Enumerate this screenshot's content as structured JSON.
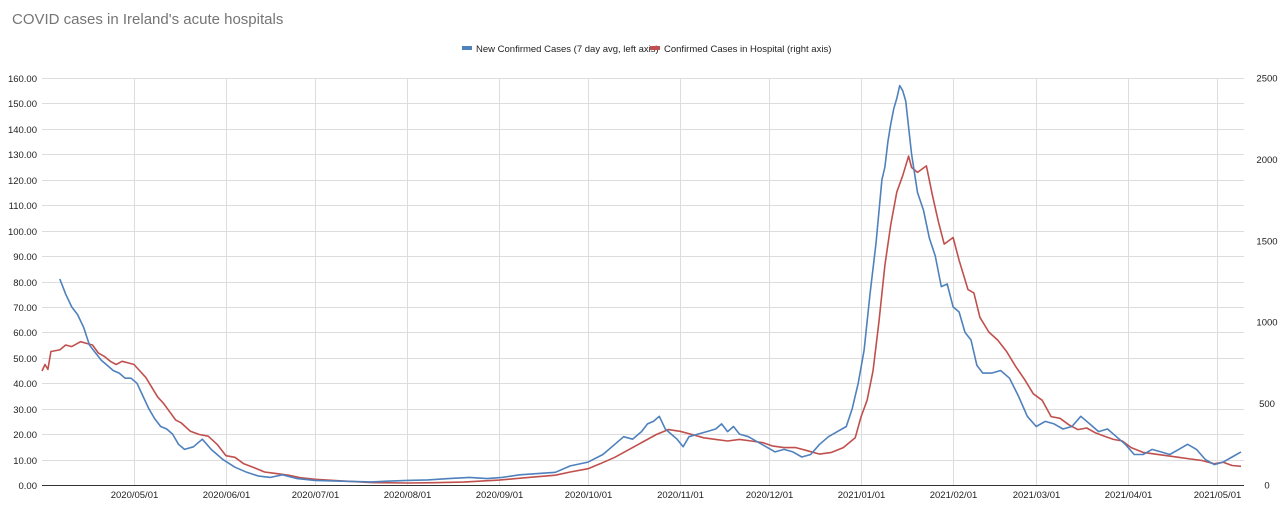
{
  "chart_data": {
    "type": "line",
    "title": "COVID cases in Ireland's acute hospitals",
    "legend_position": "top-center",
    "grid": true,
    "y_left": {
      "range": [
        0,
        160
      ],
      "ticks": [
        "0.00",
        "10.00",
        "20.00",
        "30.00",
        "40.00",
        "50.00",
        "60.00",
        "70.00",
        "80.00",
        "90.00",
        "100.00",
        "110.00",
        "120.00",
        "130.00",
        "140.00",
        "150.00",
        "160.00"
      ]
    },
    "y_right": {
      "range": [
        0,
        2500
      ],
      "ticks": [
        "0",
        "500",
        "1000",
        "1500",
        "2000",
        "2500"
      ]
    },
    "x": {
      "range": [
        "2020-03-31",
        "2021-05-10"
      ],
      "ticks": [
        {
          "date": "2020-05-01",
          "label": "2020/05/01"
        },
        {
          "date": "2020-06-01",
          "label": "2020/06/01"
        },
        {
          "date": "2020-07-01",
          "label": "2020/07/01"
        },
        {
          "date": "2020-08-01",
          "label": "2020/08/01"
        },
        {
          "date": "2020-09-01",
          "label": "2020/09/01"
        },
        {
          "date": "2020-10-01",
          "label": "2020/10/01"
        },
        {
          "date": "2020-11-01",
          "label": "2020/11/01"
        },
        {
          "date": "2020-12-01",
          "label": "2020/12/01"
        },
        {
          "date": "2021-01-01",
          "label": "2021/01/01"
        },
        {
          "date": "2021-02-01",
          "label": "2021/02/01"
        },
        {
          "date": "2021-03-01",
          "label": "2021/03/01"
        },
        {
          "date": "2021-04-01",
          "label": "2021/04/01"
        },
        {
          "date": "2021-05-01",
          "label": "2021/05/01"
        }
      ]
    },
    "series": [
      {
        "name": "New Confirmed Cases (7 day avg, left axis)",
        "axis": "left",
        "color": "#4f81bd",
        "points": [
          [
            "2020-04-06",
            81
          ],
          [
            "2020-04-08",
            75
          ],
          [
            "2020-04-10",
            70
          ],
          [
            "2020-04-12",
            67
          ],
          [
            "2020-04-14",
            62
          ],
          [
            "2020-04-16",
            55
          ],
          [
            "2020-04-18",
            52
          ],
          [
            "2020-04-20",
            49
          ],
          [
            "2020-04-22",
            47
          ],
          [
            "2020-04-24",
            45
          ],
          [
            "2020-04-26",
            44
          ],
          [
            "2020-04-28",
            42
          ],
          [
            "2020-04-30",
            42
          ],
          [
            "2020-05-02",
            40
          ],
          [
            "2020-05-04",
            35
          ],
          [
            "2020-05-06",
            30
          ],
          [
            "2020-05-08",
            26
          ],
          [
            "2020-05-10",
            23
          ],
          [
            "2020-05-12",
            22
          ],
          [
            "2020-05-14",
            20
          ],
          [
            "2020-05-16",
            16
          ],
          [
            "2020-05-18",
            14
          ],
          [
            "2020-05-21",
            15
          ],
          [
            "2020-05-24",
            18
          ],
          [
            "2020-05-27",
            14
          ],
          [
            "2020-05-31",
            10
          ],
          [
            "2020-06-04",
            7
          ],
          [
            "2020-06-08",
            5
          ],
          [
            "2020-06-12",
            3.5
          ],
          [
            "2020-06-16",
            3
          ],
          [
            "2020-06-20",
            4
          ],
          [
            "2020-06-25",
            2.5
          ],
          [
            "2020-07-01",
            1.8
          ],
          [
            "2020-07-10",
            1.5
          ],
          [
            "2020-07-20",
            1.2
          ],
          [
            "2020-07-25",
            1.5
          ],
          [
            "2020-08-01",
            1.8
          ],
          [
            "2020-08-08",
            2
          ],
          [
            "2020-08-15",
            2.5
          ],
          [
            "2020-08-22",
            3
          ],
          [
            "2020-08-28",
            2.5
          ],
          [
            "2020-09-02",
            3
          ],
          [
            "2020-09-08",
            4
          ],
          [
            "2020-09-14",
            4.5
          ],
          [
            "2020-09-20",
            5
          ],
          [
            "2020-09-25",
            7.5
          ],
          [
            "2020-10-01",
            9
          ],
          [
            "2020-10-06",
            12
          ],
          [
            "2020-10-10",
            16
          ],
          [
            "2020-10-13",
            19
          ],
          [
            "2020-10-16",
            18
          ],
          [
            "2020-10-19",
            21
          ],
          [
            "2020-10-21",
            24
          ],
          [
            "2020-10-23",
            25
          ],
          [
            "2020-10-25",
            27
          ],
          [
            "2020-10-27",
            22
          ],
          [
            "2020-10-29",
            20
          ],
          [
            "2020-10-31",
            18
          ],
          [
            "2020-11-02",
            15
          ],
          [
            "2020-11-04",
            19
          ],
          [
            "2020-11-07",
            20
          ],
          [
            "2020-11-10",
            21
          ],
          [
            "2020-11-13",
            22
          ],
          [
            "2020-11-15",
            24
          ],
          [
            "2020-11-17",
            21
          ],
          [
            "2020-11-19",
            23
          ],
          [
            "2020-11-21",
            20
          ],
          [
            "2020-11-24",
            19
          ],
          [
            "2020-11-27",
            17
          ],
          [
            "2020-11-30",
            15
          ],
          [
            "2020-12-03",
            13
          ],
          [
            "2020-12-06",
            14
          ],
          [
            "2020-12-09",
            13
          ],
          [
            "2020-12-12",
            11
          ],
          [
            "2020-12-15",
            12
          ],
          [
            "2020-12-18",
            16
          ],
          [
            "2020-12-21",
            19
          ],
          [
            "2020-12-24",
            21
          ],
          [
            "2020-12-27",
            23
          ],
          [
            "2020-12-29",
            30
          ],
          [
            "2020-12-31",
            40
          ],
          [
            "2021-01-02",
            53
          ],
          [
            "2021-01-04",
            75
          ],
          [
            "2021-01-06",
            95
          ],
          [
            "2021-01-08",
            120
          ],
          [
            "2021-01-09",
            125
          ],
          [
            "2021-01-10",
            135
          ],
          [
            "2021-01-11",
            142
          ],
          [
            "2021-01-12",
            148
          ],
          [
            "2021-01-13",
            152
          ],
          [
            "2021-01-14",
            157
          ],
          [
            "2021-01-15",
            155
          ],
          [
            "2021-01-16",
            151
          ],
          [
            "2021-01-18",
            130
          ],
          [
            "2021-01-20",
            115
          ],
          [
            "2021-01-22",
            108
          ],
          [
            "2021-01-24",
            97
          ],
          [
            "2021-01-26",
            90
          ],
          [
            "2021-01-28",
            78
          ],
          [
            "2021-01-30",
            79
          ],
          [
            "2021-02-01",
            70
          ],
          [
            "2021-02-03",
            68
          ],
          [
            "2021-02-05",
            60
          ],
          [
            "2021-02-07",
            57
          ],
          [
            "2021-02-09",
            47
          ],
          [
            "2021-02-11",
            44
          ],
          [
            "2021-02-14",
            44
          ],
          [
            "2021-02-17",
            45
          ],
          [
            "2021-02-20",
            42
          ],
          [
            "2021-02-23",
            35
          ],
          [
            "2021-02-26",
            27
          ],
          [
            "2021-03-01",
            23
          ],
          [
            "2021-03-04",
            25
          ],
          [
            "2021-03-07",
            24
          ],
          [
            "2021-03-10",
            22
          ],
          [
            "2021-03-13",
            23
          ],
          [
            "2021-03-16",
            27
          ],
          [
            "2021-03-19",
            24
          ],
          [
            "2021-03-22",
            21
          ],
          [
            "2021-03-25",
            22
          ],
          [
            "2021-03-28",
            19
          ],
          [
            "2021-03-31",
            16
          ],
          [
            "2021-04-03",
            12
          ],
          [
            "2021-04-06",
            12
          ],
          [
            "2021-04-09",
            14
          ],
          [
            "2021-04-12",
            13
          ],
          [
            "2021-04-15",
            12
          ],
          [
            "2021-04-18",
            14
          ],
          [
            "2021-04-21",
            16
          ],
          [
            "2021-04-24",
            14
          ],
          [
            "2021-04-27",
            10
          ],
          [
            "2021-04-30",
            8
          ],
          [
            "2021-05-03",
            9
          ],
          [
            "2021-05-06",
            11
          ],
          [
            "2021-05-09",
            13
          ]
        ]
      },
      {
        "name": "Confirmed Cases in Hospital (right axis)",
        "axis": "right",
        "color": "#c0504d",
        "points": [
          [
            "2020-03-31",
            700
          ],
          [
            "2020-04-01",
            740
          ],
          [
            "2020-04-02",
            710
          ],
          [
            "2020-04-03",
            820
          ],
          [
            "2020-04-06",
            830
          ],
          [
            "2020-04-08",
            860
          ],
          [
            "2020-04-10",
            850
          ],
          [
            "2020-04-13",
            880
          ],
          [
            "2020-04-15",
            870
          ],
          [
            "2020-04-17",
            860
          ],
          [
            "2020-04-19",
            810
          ],
          [
            "2020-04-21",
            790
          ],
          [
            "2020-04-23",
            760
          ],
          [
            "2020-04-25",
            740
          ],
          [
            "2020-04-27",
            760
          ],
          [
            "2020-04-29",
            750
          ],
          [
            "2020-05-01",
            740
          ],
          [
            "2020-05-03",
            700
          ],
          [
            "2020-05-05",
            660
          ],
          [
            "2020-05-07",
            600
          ],
          [
            "2020-05-09",
            540
          ],
          [
            "2020-05-11",
            500
          ],
          [
            "2020-05-13",
            450
          ],
          [
            "2020-05-15",
            400
          ],
          [
            "2020-05-17",
            380
          ],
          [
            "2020-05-20",
            330
          ],
          [
            "2020-05-23",
            310
          ],
          [
            "2020-05-26",
            300
          ],
          [
            "2020-05-29",
            250
          ],
          [
            "2020-06-01",
            180
          ],
          [
            "2020-06-04",
            170
          ],
          [
            "2020-06-07",
            130
          ],
          [
            "2020-06-10",
            110
          ],
          [
            "2020-06-14",
            80
          ],
          [
            "2020-06-18",
            70
          ],
          [
            "2020-06-22",
            60
          ],
          [
            "2020-06-26",
            45
          ],
          [
            "2020-07-01",
            35
          ],
          [
            "2020-07-10",
            25
          ],
          [
            "2020-07-20",
            15
          ],
          [
            "2020-08-01",
            12
          ],
          [
            "2020-08-10",
            14
          ],
          [
            "2020-08-20",
            18
          ],
          [
            "2020-09-01",
            30
          ],
          [
            "2020-09-10",
            45
          ],
          [
            "2020-09-20",
            60
          ],
          [
            "2020-09-25",
            80
          ],
          [
            "2020-10-01",
            100
          ],
          [
            "2020-10-05",
            130
          ],
          [
            "2020-10-10",
            170
          ],
          [
            "2020-10-15",
            220
          ],
          [
            "2020-10-20",
            270
          ],
          [
            "2020-10-24",
            310
          ],
          [
            "2020-10-28",
            340
          ],
          [
            "2020-11-01",
            330
          ],
          [
            "2020-11-05",
            310
          ],
          [
            "2020-11-09",
            290
          ],
          [
            "2020-11-13",
            280
          ],
          [
            "2020-11-17",
            270
          ],
          [
            "2020-11-21",
            280
          ],
          [
            "2020-11-25",
            270
          ],
          [
            "2020-11-29",
            260
          ],
          [
            "2020-12-02",
            240
          ],
          [
            "2020-12-06",
            230
          ],
          [
            "2020-12-10",
            230
          ],
          [
            "2020-12-14",
            210
          ],
          [
            "2020-12-18",
            190
          ],
          [
            "2020-12-22",
            200
          ],
          [
            "2020-12-26",
            230
          ],
          [
            "2020-12-30",
            290
          ],
          [
            "2021-01-01",
            420
          ],
          [
            "2021-01-03",
            520
          ],
          [
            "2021-01-05",
            700
          ],
          [
            "2021-01-07",
            1000
          ],
          [
            "2021-01-09",
            1350
          ],
          [
            "2021-01-11",
            1600
          ],
          [
            "2021-01-13",
            1800
          ],
          [
            "2021-01-15",
            1900
          ],
          [
            "2021-01-17",
            2020
          ],
          [
            "2021-01-18",
            1950
          ],
          [
            "2021-01-20",
            1920
          ],
          [
            "2021-01-23",
            1960
          ],
          [
            "2021-01-25",
            1780
          ],
          [
            "2021-01-27",
            1620
          ],
          [
            "2021-01-29",
            1480
          ],
          [
            "2021-02-01",
            1520
          ],
          [
            "2021-02-03",
            1380
          ],
          [
            "2021-02-06",
            1200
          ],
          [
            "2021-02-08",
            1180
          ],
          [
            "2021-02-10",
            1030
          ],
          [
            "2021-02-13",
            940
          ],
          [
            "2021-02-16",
            890
          ],
          [
            "2021-02-19",
            820
          ],
          [
            "2021-02-22",
            730
          ],
          [
            "2021-02-25",
            650
          ],
          [
            "2021-02-28",
            560
          ],
          [
            "2021-03-03",
            520
          ],
          [
            "2021-03-06",
            420
          ],
          [
            "2021-03-09",
            410
          ],
          [
            "2021-03-12",
            370
          ],
          [
            "2021-03-15",
            340
          ],
          [
            "2021-03-18",
            350
          ],
          [
            "2021-03-21",
            320
          ],
          [
            "2021-03-24",
            300
          ],
          [
            "2021-03-27",
            280
          ],
          [
            "2021-03-30",
            270
          ],
          [
            "2021-04-02",
            230
          ],
          [
            "2021-04-06",
            200
          ],
          [
            "2021-04-10",
            190
          ],
          [
            "2021-04-14",
            180
          ],
          [
            "2021-04-18",
            170
          ],
          [
            "2021-04-22",
            160
          ],
          [
            "2021-04-26",
            150
          ],
          [
            "2021-04-30",
            130
          ],
          [
            "2021-05-03",
            140
          ],
          [
            "2021-05-06",
            120
          ],
          [
            "2021-05-09",
            115
          ]
        ]
      }
    ]
  }
}
